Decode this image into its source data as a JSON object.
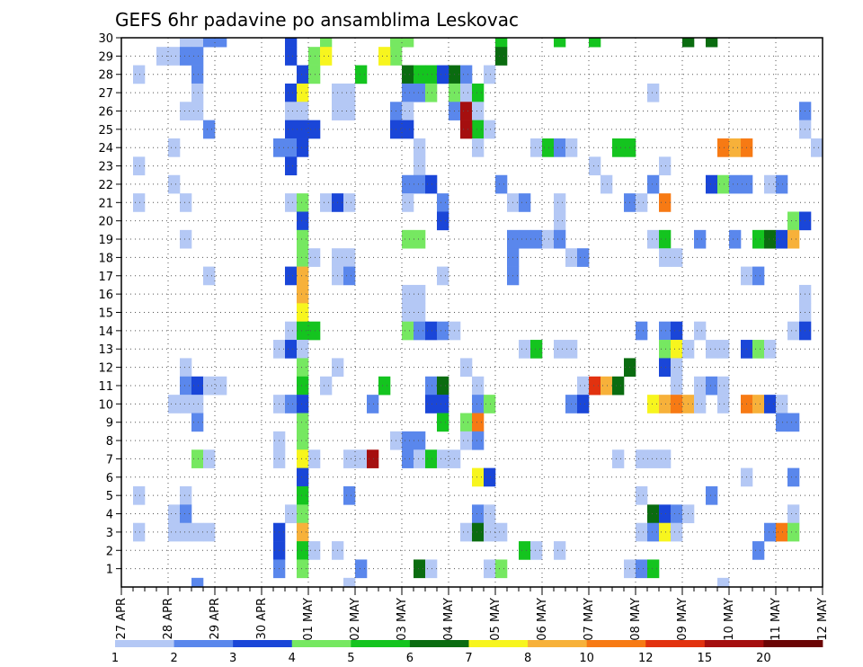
{
  "chart_data": {
    "type": "heatmap",
    "title": "GEFS 6hr padavine po ansamblima Leskovac",
    "xlabel": "",
    "ylabel": "",
    "x_tick_labels": [
      "27 APR",
      "28 APR",
      "29 APR",
      "30 APR",
      "01 MAY",
      "02 MAY",
      "03 MAY",
      "04 MAY",
      "05 MAY",
      "06 MAY",
      "07 MAY",
      "08 MAY",
      "09 MAY",
      "10 MAY",
      "11 MAY",
      "12 MAY"
    ],
    "y_tick_labels": [
      "1",
      "2",
      "3",
      "4",
      "5",
      "6",
      "7",
      "8",
      "9",
      "10",
      "11",
      "12",
      "13",
      "14",
      "15",
      "16",
      "17",
      "18",
      "19",
      "20",
      "21",
      "22",
      "23",
      "24",
      "25",
      "26",
      "27",
      "28",
      "29",
      "30"
    ],
    "x_range_days": [
      0,
      15
    ],
    "y_range": [
      0,
      30
    ],
    "grid": true,
    "color_scale": {
      "labels": [
        "1",
        "2",
        "3",
        "4",
        "5",
        "6",
        "7",
        "8",
        "10",
        "12",
        "15",
        "20"
      ],
      "colors": [
        "#b4c8f5",
        "#5a87ec",
        "#1a46d8",
        "#76e861",
        "#14c41f",
        "#0a6c10",
        "#f7f51e",
        "#f7b13a",
        "#f77a14",
        "#e2320f",
        "#a50f0f",
        "#6b0505"
      ]
    },
    "cells": [
      [
        1,
        30,
        5
      ],
      [
        1,
        30,
        6
      ],
      [
        2,
        30,
        7
      ],
      [
        2,
        30,
        8
      ],
      [
        3,
        30,
        14
      ],
      [
        4,
        30,
        17
      ],
      [
        4,
        30,
        23
      ],
      [
        4,
        30,
        24
      ],
      [
        5,
        30,
        32
      ],
      [
        5,
        30,
        37
      ],
      [
        5,
        30,
        40
      ],
      [
        6,
        30,
        48
      ],
      [
        6,
        30,
        50
      ],
      [
        1,
        29,
        3
      ],
      [
        1,
        29,
        4
      ],
      [
        2,
        29,
        5
      ],
      [
        2,
        29,
        6
      ],
      [
        3,
        29,
        14
      ],
      [
        4,
        29,
        16
      ],
      [
        4,
        29,
        23
      ],
      [
        6,
        29,
        32
      ],
      [
        7,
        29,
        17
      ],
      [
        7,
        29,
        22
      ],
      [
        1,
        28,
        1
      ],
      [
        2,
        28,
        6
      ],
      [
        3,
        28,
        15
      ],
      [
        4,
        28,
        16
      ],
      [
        5,
        28,
        20
      ],
      [
        6,
        28,
        24
      ],
      [
        5,
        28,
        25
      ],
      [
        5,
        28,
        26
      ],
      [
        6,
        28,
        28
      ],
      [
        2,
        28,
        29
      ],
      [
        3,
        28,
        27
      ],
      [
        1,
        28,
        31
      ],
      [
        1,
        27,
        6
      ],
      [
        3,
        27,
        14
      ],
      [
        7,
        27,
        15
      ],
      [
        1,
        27,
        18
      ],
      [
        1,
        27,
        19
      ],
      [
        2,
        27,
        24
      ],
      [
        2,
        27,
        25
      ],
      [
        4,
        27,
        26
      ],
      [
        4,
        27,
        28
      ],
      [
        1,
        27,
        29
      ],
      [
        5,
        27,
        30
      ],
      [
        1,
        27,
        45
      ],
      [
        1,
        26,
        5
      ],
      [
        1,
        26,
        6
      ],
      [
        1,
        26,
        14
      ],
      [
        1,
        26,
        15
      ],
      [
        1,
        26,
        18
      ],
      [
        1,
        26,
        19
      ],
      [
        2,
        26,
        23
      ],
      [
        1,
        26,
        24
      ],
      [
        2,
        26,
        28
      ],
      [
        11,
        26,
        29
      ],
      [
        1,
        26,
        30
      ],
      [
        2,
        26,
        58
      ],
      [
        2,
        25,
        7
      ],
      [
        3,
        25,
        14
      ],
      [
        3,
        25,
        15
      ],
      [
        3,
        25,
        16
      ],
      [
        3,
        25,
        23
      ],
      [
        3,
        25,
        24
      ],
      [
        5,
        25,
        30
      ],
      [
        11,
        25,
        29
      ],
      [
        1,
        25,
        31
      ],
      [
        1,
        25,
        58
      ],
      [
        1,
        24,
        4
      ],
      [
        2,
        24,
        13
      ],
      [
        2,
        24,
        14
      ],
      [
        3,
        24,
        15
      ],
      [
        1,
        24,
        25
      ],
      [
        1,
        24,
        30
      ],
      [
        1,
        24,
        35
      ],
      [
        5,
        24,
        36
      ],
      [
        2,
        24,
        37
      ],
      [
        1,
        24,
        38
      ],
      [
        5,
        24,
        42
      ],
      [
        5,
        24,
        43
      ],
      [
        9,
        24,
        51
      ],
      [
        8,
        24,
        52
      ],
      [
        9,
        24,
        53
      ],
      [
        1,
        24,
        59
      ],
      [
        1,
        23,
        1
      ],
      [
        3,
        23,
        14
      ],
      [
        1,
        23,
        25
      ],
      [
        1,
        23,
        40
      ],
      [
        1,
        23,
        46
      ],
      [
        1,
        22,
        4
      ],
      [
        2,
        22,
        24
      ],
      [
        2,
        22,
        25
      ],
      [
        3,
        22,
        26
      ],
      [
        2,
        22,
        32
      ],
      [
        1,
        22,
        41
      ],
      [
        2,
        22,
        45
      ],
      [
        3,
        22,
        50
      ],
      [
        4,
        22,
        51
      ],
      [
        2,
        22,
        52
      ],
      [
        2,
        22,
        53
      ],
      [
        1,
        22,
        55
      ],
      [
        2,
        22,
        56
      ],
      [
        1,
        21,
        1
      ],
      [
        1,
        21,
        5
      ],
      [
        1,
        21,
        14
      ],
      [
        4,
        21,
        15
      ],
      [
        1,
        21,
        17
      ],
      [
        3,
        21,
        18
      ],
      [
        1,
        21,
        19
      ],
      [
        1,
        21,
        24
      ],
      [
        2,
        21,
        27
      ],
      [
        1,
        21,
        33
      ],
      [
        2,
        21,
        34
      ],
      [
        1,
        21,
        37
      ],
      [
        2,
        21,
        43
      ],
      [
        1,
        21,
        44
      ],
      [
        9,
        21,
        46
      ],
      [
        3,
        20,
        15
      ],
      [
        3,
        20,
        27
      ],
      [
        1,
        20,
        37
      ],
      [
        4,
        20,
        57
      ],
      [
        3,
        20,
        58
      ],
      [
        1,
        19,
        5
      ],
      [
        4,
        19,
        15
      ],
      [
        4,
        19,
        24
      ],
      [
        4,
        19,
        25
      ],
      [
        2,
        19,
        33
      ],
      [
        2,
        19,
        34
      ],
      [
        2,
        19,
        35
      ],
      [
        1,
        19,
        36
      ],
      [
        2,
        19,
        37
      ],
      [
        1,
        19,
        45
      ],
      [
        5,
        19,
        46
      ],
      [
        2,
        19,
        49
      ],
      [
        2,
        19,
        52
      ],
      [
        5,
        19,
        54
      ],
      [
        6,
        19,
        55
      ],
      [
        3,
        19,
        56
      ],
      [
        8,
        19,
        57
      ],
      [
        4,
        18,
        15
      ],
      [
        1,
        18,
        16
      ],
      [
        1,
        18,
        18
      ],
      [
        1,
        18,
        19
      ],
      [
        2,
        18,
        33
      ],
      [
        1,
        18,
        38
      ],
      [
        2,
        18,
        39
      ],
      [
        1,
        18,
        46
      ],
      [
        1,
        18,
        47
      ],
      [
        1,
        17,
        7
      ],
      [
        3,
        17,
        14
      ],
      [
        8,
        17,
        15
      ],
      [
        1,
        17,
        18
      ],
      [
        2,
        17,
        19
      ],
      [
        1,
        17,
        27
      ],
      [
        2,
        17,
        33
      ],
      [
        1,
        17,
        53
      ],
      [
        2,
        17,
        54
      ],
      [
        8,
        16,
        15
      ],
      [
        1,
        16,
        24
      ],
      [
        1,
        16,
        25
      ],
      [
        1,
        16,
        58
      ],
      [
        7,
        15,
        15
      ],
      [
        1,
        15,
        24
      ],
      [
        1,
        15,
        25
      ],
      [
        1,
        15,
        58
      ],
      [
        1,
        14,
        14
      ],
      [
        5,
        14,
        15
      ],
      [
        5,
        14,
        16
      ],
      [
        4,
        14,
        24
      ],
      [
        2,
        14,
        25
      ],
      [
        3,
        14,
        26
      ],
      [
        2,
        14,
        27
      ],
      [
        1,
        14,
        28
      ],
      [
        2,
        14,
        44
      ],
      [
        2,
        14,
        46
      ],
      [
        3,
        14,
        47
      ],
      [
        1,
        14,
        49
      ],
      [
        1,
        14,
        57
      ],
      [
        3,
        14,
        58
      ],
      [
        1,
        13,
        13
      ],
      [
        3,
        13,
        14
      ],
      [
        1,
        13,
        15
      ],
      [
        1,
        13,
        34
      ],
      [
        5,
        13,
        35
      ],
      [
        1,
        13,
        37
      ],
      [
        1,
        13,
        38
      ],
      [
        4,
        13,
        46
      ],
      [
        7,
        13,
        47
      ],
      [
        1,
        13,
        48
      ],
      [
        1,
        13,
        50
      ],
      [
        1,
        13,
        51
      ],
      [
        3,
        13,
        53
      ],
      [
        4,
        13,
        54
      ],
      [
        1,
        13,
        55
      ],
      [
        1,
        12,
        5
      ],
      [
        4,
        12,
        15
      ],
      [
        1,
        12,
        18
      ],
      [
        1,
        12,
        29
      ],
      [
        6,
        12,
        43
      ],
      [
        3,
        12,
        46
      ],
      [
        1,
        12,
        47
      ],
      [
        2,
        11,
        5
      ],
      [
        3,
        11,
        6
      ],
      [
        1,
        11,
        7
      ],
      [
        1,
        11,
        8
      ],
      [
        5,
        11,
        15
      ],
      [
        1,
        11,
        17
      ],
      [
        5,
        11,
        22
      ],
      [
        2,
        11,
        26
      ],
      [
        6,
        11,
        27
      ],
      [
        1,
        11,
        30
      ],
      [
        1,
        11,
        39
      ],
      [
        10,
        11,
        40
      ],
      [
        8,
        11,
        41
      ],
      [
        6,
        11,
        42
      ],
      [
        1,
        11,
        47
      ],
      [
        1,
        11,
        49
      ],
      [
        2,
        11,
        50
      ],
      [
        1,
        11,
        51
      ],
      [
        1,
        10,
        4
      ],
      [
        1,
        10,
        5
      ],
      [
        1,
        10,
        6
      ],
      [
        1,
        10,
        13
      ],
      [
        2,
        10,
        14
      ],
      [
        3,
        10,
        15
      ],
      [
        2,
        10,
        21
      ],
      [
        3,
        10,
        26
      ],
      [
        3,
        10,
        27
      ],
      [
        2,
        10,
        30
      ],
      [
        4,
        10,
        31
      ],
      [
        2,
        10,
        38
      ],
      [
        3,
        10,
        39
      ],
      [
        7,
        10,
        45
      ],
      [
        8,
        10,
        46
      ],
      [
        9,
        10,
        47
      ],
      [
        8,
        10,
        48
      ],
      [
        1,
        10,
        49
      ],
      [
        1,
        10,
        51
      ],
      [
        9,
        10,
        53
      ],
      [
        8,
        10,
        54
      ],
      [
        3,
        10,
        55
      ],
      [
        1,
        10,
        56
      ],
      [
        2,
        9,
        6
      ],
      [
        4,
        9,
        15
      ],
      [
        5,
        9,
        27
      ],
      [
        4,
        9,
        29
      ],
      [
        9,
        9,
        30
      ],
      [
        2,
        9,
        56
      ],
      [
        2,
        9,
        57
      ],
      [
        1,
        8,
        13
      ],
      [
        4,
        8,
        15
      ],
      [
        1,
        8,
        23
      ],
      [
        2,
        8,
        24
      ],
      [
        2,
        8,
        25
      ],
      [
        1,
        8,
        29
      ],
      [
        2,
        8,
        30
      ],
      [
        4,
        7,
        6
      ],
      [
        1,
        7,
        7
      ],
      [
        1,
        7,
        13
      ],
      [
        7,
        7,
        15
      ],
      [
        1,
        7,
        16
      ],
      [
        1,
        7,
        19
      ],
      [
        1,
        7,
        20
      ],
      [
        11,
        7,
        21
      ],
      [
        2,
        7,
        24
      ],
      [
        1,
        7,
        25
      ],
      [
        5,
        7,
        26
      ],
      [
        1,
        7,
        27
      ],
      [
        1,
        7,
        28
      ],
      [
        1,
        7,
        42
      ],
      [
        1,
        7,
        44
      ],
      [
        1,
        7,
        45
      ],
      [
        1,
        7,
        46
      ],
      [
        3,
        6,
        15
      ],
      [
        7,
        6,
        30
      ],
      [
        3,
        6,
        31
      ],
      [
        1,
        6,
        53
      ],
      [
        2,
        6,
        57
      ],
      [
        1,
        5,
        1
      ],
      [
        1,
        5,
        5
      ],
      [
        5,
        5,
        15
      ],
      [
        2,
        5,
        19
      ],
      [
        1,
        5,
        44
      ],
      [
        2,
        5,
        50
      ],
      [
        1,
        4,
        4
      ],
      [
        2,
        4,
        5
      ],
      [
        1,
        4,
        14
      ],
      [
        4,
        4,
        15
      ],
      [
        2,
        4,
        30
      ],
      [
        1,
        4,
        31
      ],
      [
        6,
        4,
        45
      ],
      [
        3,
        4,
        46
      ],
      [
        2,
        4,
        47
      ],
      [
        1,
        4,
        48
      ],
      [
        1,
        4,
        57
      ],
      [
        1,
        3,
        1
      ],
      [
        1,
        3,
        4
      ],
      [
        1,
        3,
        5
      ],
      [
        1,
        3,
        6
      ],
      [
        1,
        3,
        7
      ],
      [
        3,
        3,
        13
      ],
      [
        8,
        3,
        15
      ],
      [
        1,
        3,
        29
      ],
      [
        6,
        3,
        30
      ],
      [
        1,
        3,
        31
      ],
      [
        1,
        3,
        32
      ],
      [
        1,
        3,
        44
      ],
      [
        2,
        3,
        45
      ],
      [
        7,
        3,
        46
      ],
      [
        1,
        3,
        47
      ],
      [
        2,
        3,
        55
      ],
      [
        9,
        3,
        56
      ],
      [
        4,
        3,
        57
      ],
      [
        3,
        2,
        13
      ],
      [
        5,
        2,
        15
      ],
      [
        1,
        2,
        16
      ],
      [
        1,
        2,
        18
      ],
      [
        5,
        2,
        34
      ],
      [
        1,
        2,
        35
      ],
      [
        1,
        2,
        37
      ],
      [
        2,
        2,
        54
      ],
      [
        2,
        1,
        13
      ],
      [
        4,
        1,
        15
      ],
      [
        2,
        1,
        20
      ],
      [
        6,
        1,
        25
      ],
      [
        1,
        1,
        26
      ],
      [
        1,
        1,
        31
      ],
      [
        4,
        1,
        32
      ],
      [
        1,
        1,
        43
      ],
      [
        2,
        1,
        44
      ],
      [
        5,
        1,
        45
      ],
      [
        2,
        0,
        6
      ],
      [
        1,
        0,
        19
      ],
      [
        1,
        0,
        51
      ]
    ]
  }
}
